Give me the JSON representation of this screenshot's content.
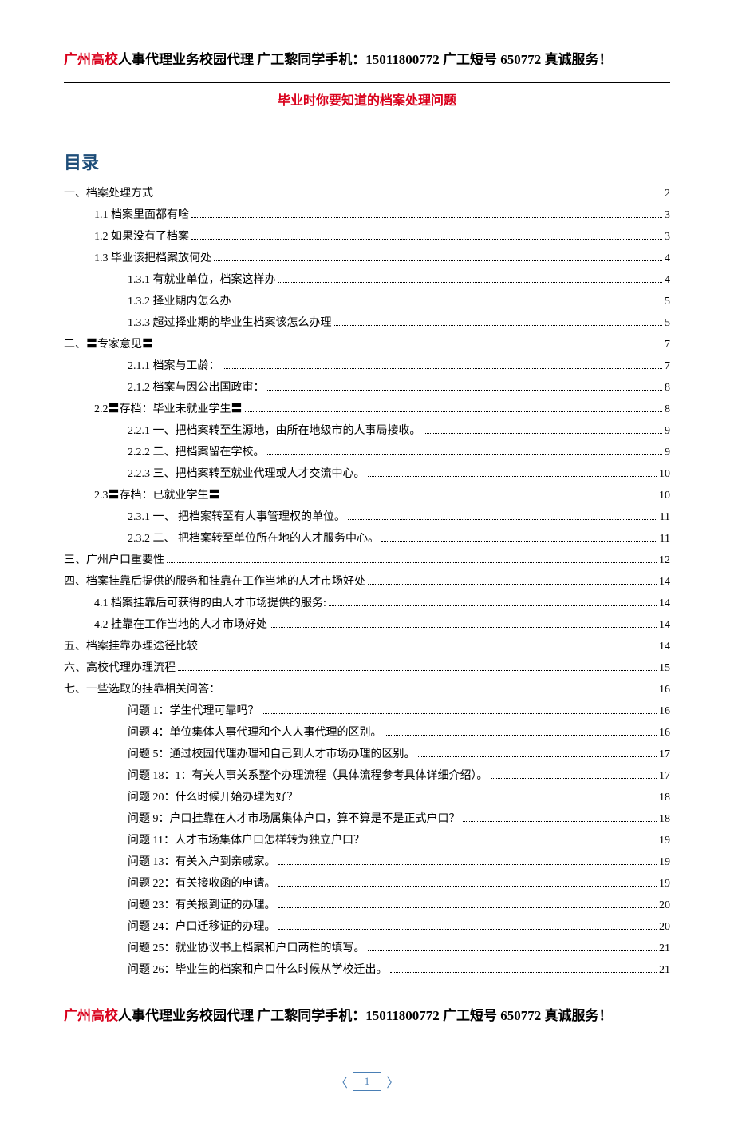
{
  "colors": {
    "accent_red": "#d9001b",
    "heading_blue": "#1f4e79",
    "pagenum_blue": "#4a7fb5",
    "text_black": "#000000",
    "background": "#ffffff"
  },
  "typography": {
    "body_family": "SimSun / Microsoft YaHei",
    "banner_size_pt": 13,
    "title_size_pt": 12,
    "toc_heading_size_pt": 16,
    "toc_entry_size_pt": 11
  },
  "banner": {
    "part1_red": "广州高校",
    "part2_black": "人事代理业务校园代理 广工黎同学手机：15011800772",
    "part3_black": "    广工短号 650772    真诚服务！"
  },
  "doc_title": "毕业时你要知道的档案处理问题",
  "toc_heading": "目录",
  "toc": [
    {
      "indent": 0,
      "label": "一、档案处理方式",
      "page": "2"
    },
    {
      "indent": 1,
      "label": "1.1 档案里面都有啥 ",
      "page": "3"
    },
    {
      "indent": 1,
      "label": "1.2 如果没有了档案 ",
      "page": "3"
    },
    {
      "indent": 1,
      "label": "1.3 毕业该把档案放何处 ",
      "page": "4"
    },
    {
      "indent": 2,
      "label": "1.3.1 有就业单位，档案这样办 ",
      "page": "4"
    },
    {
      "indent": 2,
      "label": "1.3.2 择业期内怎么办 ",
      "page": "5"
    },
    {
      "indent": 2,
      "label": "1.3.3 超过择业期的毕业生档案该怎么办理 ",
      "page": "5"
    },
    {
      "indent": 0,
      "label": "二、〓专家意见〓",
      "page": "7"
    },
    {
      "indent": 2,
      "label": "2.1.1 档案与工龄：",
      "page": "7"
    },
    {
      "indent": 2,
      "label": "2.1.2 档案与因公出国政审：",
      "page": "8"
    },
    {
      "indent": 1,
      "label": "2.2〓存档：毕业未就业学生〓",
      "page": "8"
    },
    {
      "indent": 2,
      "label": "2.2.1 一、把档案转至生源地，由所在地级市的人事局接收。",
      "page": "9"
    },
    {
      "indent": 2,
      "label": "2.2.2 二、把档案留在学校。",
      "page": "9"
    },
    {
      "indent": 2,
      "label": "2.2.3 三、把档案转至就业代理或人才交流中心。",
      "page": "10"
    },
    {
      "indent": 1,
      "label": "2.3〓存档：已就业学生〓",
      "page": "10"
    },
    {
      "indent": 2,
      "label": "2.3.1 一、 把档案转至有人事管理权的单位。",
      "page": "11"
    },
    {
      "indent": 2,
      "label": "2.3.2 二、 把档案转至单位所在地的人才服务中心。",
      "page": "11"
    },
    {
      "indent": 0,
      "label": "三、广州户口重要性",
      "page": "12"
    },
    {
      "indent": 0,
      "label": "四、档案挂靠后提供的服务和挂靠在工作当地的人才市场好处",
      "page": "14"
    },
    {
      "indent": 1,
      "label": "4.1 档案挂靠后可获得的由人才市场提供的服务:",
      "page": "14"
    },
    {
      "indent": 1,
      "label": "4.2 挂靠在工作当地的人才市场好处",
      "page": "14"
    },
    {
      "indent": 0,
      "label": "五、档案挂靠办理途径比较 ",
      "page": "14"
    },
    {
      "indent": 0,
      "label": "六、高校代理办理流程 ",
      "page": "15"
    },
    {
      "indent": 0,
      "label": "七、一些选取的挂靠相关问答：",
      "page": "16"
    },
    {
      "indent": 2,
      "label": "问题 1：学生代理可靠吗？",
      "page": "16"
    },
    {
      "indent": 2,
      "label": "问题 4：单位集体人事代理和个人人事代理的区别。",
      "page": "16"
    },
    {
      "indent": 2,
      "label": "问题 5：通过校园代理办理和自己到人才市场办理的区别。",
      "page": "17"
    },
    {
      "indent": 2,
      "label": "问题 18：1：有关人事关系整个办理流程（具体流程参考具体详细介绍）。",
      "page": "17"
    },
    {
      "indent": 2,
      "label": "问题 20：什么时候开始办理为好？",
      "page": "18"
    },
    {
      "indent": 2,
      "label": "问题 9：户口挂靠在人才市场属集体户口，算不算是不是正式户口？",
      "page": "18"
    },
    {
      "indent": 2,
      "label": "问题 11：人才市场集体户口怎样转为独立户口？",
      "page": "19"
    },
    {
      "indent": 2,
      "label": "问题 13：有关入户到亲戚家。",
      "page": "19"
    },
    {
      "indent": 2,
      "label": "问题 22：有关接收函的申请。",
      "page": "19"
    },
    {
      "indent": 2,
      "label": "问题 23：有关报到证的办理。",
      "page": "20"
    },
    {
      "indent": 2,
      "label": "问题 24：户口迁移证的办理。",
      "page": "20"
    },
    {
      "indent": 2,
      "label": "问题 25：就业协议书上档案和户口两栏的填写。",
      "page": "21"
    },
    {
      "indent": 2,
      "label": "问题 26：毕业生的档案和户口什么时候从学校迁出。",
      "page": "21"
    }
  ],
  "page_number": "1"
}
